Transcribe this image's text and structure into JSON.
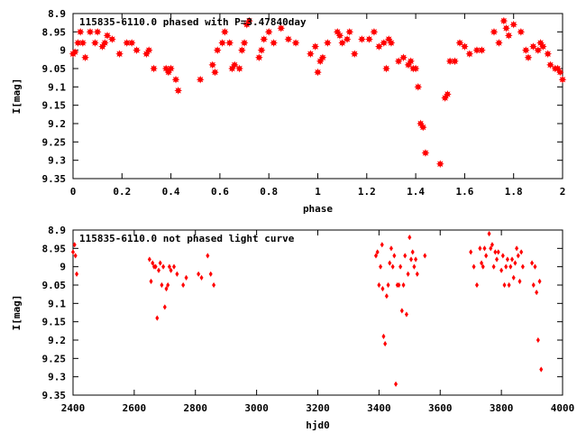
{
  "colors": {
    "points": "#ff0000",
    "axes": "#000000",
    "background": "#ffffff"
  },
  "chart_data": [
    {
      "type": "scatter",
      "title": "115835-6110.0 phased with P=3.47840day",
      "xlabel": "phase",
      "ylabel": "I[mag]",
      "xlim": [
        0,
        2
      ],
      "ylim": [
        8.9,
        9.35
      ],
      "y_inverted": true,
      "xticks": [
        0,
        0.2,
        0.4,
        0.6,
        0.8,
        1,
        1.2,
        1.4,
        1.6,
        1.8,
        2
      ],
      "xtick_labels": [
        "0",
        "0.2",
        "0.4",
        "0.6",
        "0.8",
        "1",
        "1.2",
        "1.4",
        "1.6",
        "1.8",
        "2"
      ],
      "yticks": [
        8.9,
        8.95,
        9,
        9.05,
        9.1,
        9.15,
        9.2,
        9.25,
        9.3,
        9.35
      ],
      "ytick_labels": [
        "8.9",
        "8.95",
        "9",
        "9.05",
        "9.1",
        "9.15",
        "9.2",
        "9.25",
        "9.3",
        "9.35"
      ],
      "grid": false,
      "marker": "star",
      "series": [
        {
          "points": [
            [
              0.0,
              9.01
            ],
            [
              0.008,
              9.005
            ],
            [
              0.02,
              8.98
            ],
            [
              0.03,
              8.95
            ],
            [
              0.04,
              8.98
            ],
            [
              0.05,
              9.02
            ],
            [
              0.07,
              8.95
            ],
            [
              0.09,
              8.98
            ],
            [
              0.1,
              8.95
            ],
            [
              0.12,
              8.99
            ],
            [
              0.13,
              8.98
            ],
            [
              0.14,
              8.96
            ],
            [
              0.16,
              8.97
            ],
            [
              0.19,
              9.01
            ],
            [
              0.22,
              8.98
            ],
            [
              0.24,
              8.98
            ],
            [
              0.26,
              9.0
            ],
            [
              0.3,
              9.01
            ],
            [
              0.31,
              9.0
            ],
            [
              0.33,
              9.05
            ],
            [
              0.38,
              9.05
            ],
            [
              0.39,
              9.06
            ],
            [
              0.4,
              9.05
            ],
            [
              0.42,
              9.08
            ],
            [
              0.43,
              9.11
            ],
            [
              0.52,
              9.08
            ],
            [
              0.57,
              9.04
            ],
            [
              0.58,
              9.06
            ],
            [
              0.59,
              9.0
            ],
            [
              0.61,
              8.98
            ],
            [
              0.62,
              8.95
            ],
            [
              0.64,
              8.98
            ],
            [
              0.65,
              9.05
            ],
            [
              0.66,
              9.04
            ],
            [
              0.68,
              9.05
            ],
            [
              0.69,
              9.0
            ],
            [
              0.7,
              8.98
            ],
            [
              0.71,
              8.93
            ],
            [
              0.72,
              8.92
            ],
            [
              0.76,
              9.02
            ],
            [
              0.77,
              9.0
            ],
            [
              0.78,
              8.97
            ],
            [
              0.8,
              8.95
            ],
            [
              0.82,
              8.98
            ],
            [
              0.85,
              8.94
            ],
            [
              0.88,
              8.97
            ],
            [
              0.91,
              8.98
            ],
            [
              0.97,
              9.01
            ],
            [
              0.99,
              8.99
            ],
            [
              1.0,
              9.06
            ],
            [
              1.01,
              9.03
            ],
            [
              1.02,
              9.02
            ],
            [
              1.04,
              8.98
            ],
            [
              1.08,
              8.95
            ],
            [
              1.09,
              8.96
            ],
            [
              1.1,
              8.98
            ],
            [
              1.12,
              8.97
            ],
            [
              1.13,
              8.95
            ],
            [
              1.15,
              9.01
            ],
            [
              1.18,
              8.97
            ],
            [
              1.21,
              8.97
            ],
            [
              1.23,
              8.95
            ],
            [
              1.25,
              8.99
            ],
            [
              1.27,
              8.98
            ],
            [
              1.28,
              9.05
            ],
            [
              1.29,
              8.97
            ],
            [
              1.3,
              8.98
            ],
            [
              1.33,
              9.03
            ],
            [
              1.35,
              9.02
            ],
            [
              1.37,
              9.04
            ],
            [
              1.38,
              9.03
            ],
            [
              1.39,
              9.05
            ],
            [
              1.4,
              9.05
            ],
            [
              1.41,
              9.1
            ],
            [
              1.42,
              9.2
            ],
            [
              1.43,
              9.21
            ],
            [
              1.44,
              9.28
            ],
            [
              1.5,
              9.31
            ],
            [
              1.52,
              9.13
            ],
            [
              1.53,
              9.12
            ],
            [
              1.54,
              9.03
            ],
            [
              1.56,
              9.03
            ],
            [
              1.58,
              8.98
            ],
            [
              1.6,
              8.99
            ],
            [
              1.62,
              9.01
            ],
            [
              1.65,
              9.0
            ],
            [
              1.67,
              9.0
            ],
            [
              1.72,
              8.95
            ],
            [
              1.74,
              8.98
            ],
            [
              1.76,
              8.92
            ],
            [
              1.77,
              8.94
            ],
            [
              1.78,
              8.96
            ],
            [
              1.8,
              8.93
            ],
            [
              1.83,
              8.95
            ],
            [
              1.85,
              9.0
            ],
            [
              1.86,
              9.02
            ],
            [
              1.88,
              8.99
            ],
            [
              1.9,
              9.0
            ],
            [
              1.91,
              8.98
            ],
            [
              1.92,
              8.99
            ],
            [
              1.94,
              9.01
            ],
            [
              1.95,
              9.04
            ],
            [
              1.97,
              9.05
            ],
            [
              1.98,
              9.05
            ],
            [
              1.99,
              9.06
            ],
            [
              2.0,
              9.08
            ]
          ]
        }
      ]
    },
    {
      "type": "scatter",
      "title": "115835-6110.0 not phased light curve",
      "xlabel": "hjd0",
      "ylabel": "I[mag]",
      "xlim": [
        2400,
        4000
      ],
      "ylim": [
        8.9,
        9.35
      ],
      "y_inverted": true,
      "xticks": [
        2400,
        2600,
        2800,
        3000,
        3200,
        3400,
        3600,
        3800,
        4000
      ],
      "xtick_labels": [
        "2400",
        "2600",
        "2800",
        "3000",
        "3200",
        "3400",
        "3600",
        "3800",
        "4000"
      ],
      "yticks": [
        8.9,
        8.95,
        9,
        9.05,
        9.1,
        9.15,
        9.2,
        9.25,
        9.3,
        9.35
      ],
      "ytick_labels": [
        "8.9",
        "8.95",
        "9",
        "9.05",
        "9.1",
        "9.15",
        "9.2",
        "9.25",
        "9.3",
        "9.35"
      ],
      "grid": false,
      "marker": "diamond",
      "series": [
        {
          "points": [
            [
              2400,
              8.96
            ],
            [
              2405,
              8.94
            ],
            [
              2408,
              8.97
            ],
            [
              2412,
              9.02
            ],
            [
              2650,
              8.98
            ],
            [
              2655,
              9.04
            ],
            [
              2660,
              8.99
            ],
            [
              2665,
              9.0
            ],
            [
              2670,
              9.0
            ],
            [
              2675,
              9.14
            ],
            [
              2680,
              9.01
            ],
            [
              2685,
              8.99
            ],
            [
              2690,
              9.05
            ],
            [
              2695,
              9.0
            ],
            [
              2700,
              9.11
            ],
            [
              2705,
              9.06
            ],
            [
              2710,
              9.05
            ],
            [
              2715,
              9.0
            ],
            [
              2720,
              9.01
            ],
            [
              2730,
              9.0
            ],
            [
              2740,
              9.02
            ],
            [
              2760,
              9.05
            ],
            [
              2770,
              9.03
            ],
            [
              2810,
              9.02
            ],
            [
              2820,
              9.03
            ],
            [
              2840,
              8.97
            ],
            [
              2850,
              9.02
            ],
            [
              2860,
              9.05
            ],
            [
              3390,
              8.97
            ],
            [
              3395,
              8.96
            ],
            [
              3400,
              9.05
            ],
            [
              3405,
              9.0
            ],
            [
              3410,
              8.94
            ],
            [
              3412,
              9.06
            ],
            [
              3415,
              9.19
            ],
            [
              3420,
              9.21
            ],
            [
              3425,
              9.08
            ],
            [
              3430,
              9.05
            ],
            [
              3435,
              8.99
            ],
            [
              3440,
              8.95
            ],
            [
              3445,
              9.0
            ],
            [
              3450,
              8.97
            ],
            [
              3455,
              9.32
            ],
            [
              3460,
              9.05
            ],
            [
              3465,
              9.05
            ],
            [
              3470,
              9.0
            ],
            [
              3475,
              9.12
            ],
            [
              3480,
              9.05
            ],
            [
              3485,
              8.97
            ],
            [
              3490,
              9.13
            ],
            [
              3495,
              9.02
            ],
            [
              3500,
              8.92
            ],
            [
              3505,
              8.98
            ],
            [
              3510,
              8.96
            ],
            [
              3515,
              9.0
            ],
            [
              3520,
              8.98
            ],
            [
              3525,
              9.02
            ],
            [
              3550,
              8.97
            ],
            [
              3700,
              8.96
            ],
            [
              3710,
              9.0
            ],
            [
              3720,
              9.05
            ],
            [
              3730,
              8.95
            ],
            [
              3735,
              8.99
            ],
            [
              3740,
              9.0
            ],
            [
              3745,
              8.95
            ],
            [
              3750,
              8.97
            ],
            [
              3760,
              8.91
            ],
            [
              3765,
              8.95
            ],
            [
              3770,
              8.94
            ],
            [
              3775,
              9.0
            ],
            [
              3780,
              8.96
            ],
            [
              3785,
              8.98
            ],
            [
              3790,
              8.96
            ],
            [
              3800,
              9.01
            ],
            [
              3805,
              8.97
            ],
            [
              3810,
              9.05
            ],
            [
              3815,
              9.0
            ],
            [
              3820,
              8.98
            ],
            [
              3825,
              9.05
            ],
            [
              3830,
              9.0
            ],
            [
              3835,
              8.98
            ],
            [
              3840,
              9.03
            ],
            [
              3845,
              8.99
            ],
            [
              3850,
              8.95
            ],
            [
              3855,
              8.97
            ],
            [
              3860,
              9.04
            ],
            [
              3865,
              8.96
            ],
            [
              3870,
              9.0
            ],
            [
              3900,
              8.99
            ],
            [
              3905,
              9.05
            ],
            [
              3910,
              9.0
            ],
            [
              3915,
              9.07
            ],
            [
              3920,
              9.2
            ],
            [
              3925,
              9.04
            ],
            [
              3930,
              9.28
            ]
          ]
        }
      ]
    }
  ]
}
